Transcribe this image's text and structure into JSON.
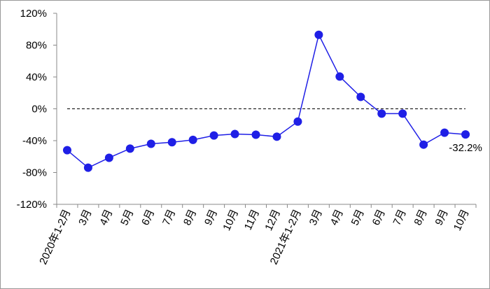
{
  "chart_data": {
    "type": "line",
    "categories": [
      "2020年1-2月",
      "3月",
      "4月",
      "5月",
      "6月",
      "7月",
      "8月",
      "9月",
      "10月",
      "11月",
      "12月",
      "2021年1-2月",
      "3月",
      "4月",
      "5月",
      "6月",
      "7月",
      "8月",
      "9月",
      "10月"
    ],
    "series": [
      {
        "name": null,
        "color": "#1f1fe6",
        "values": [
          -52,
          -74,
          -61.5,
          -50,
          -44,
          -42,
          -39,
          -33.5,
          -31.7,
          -32.5,
          -35,
          -16,
          93,
          40.5,
          15,
          -6,
          -6,
          -45,
          -30,
          -32.2
        ],
        "value_labels": [
          null,
          null,
          null,
          null,
          null,
          null,
          null,
          null,
          null,
          null,
          null,
          null,
          null,
          null,
          null,
          null,
          null,
          null,
          null,
          "-32.2%"
        ]
      }
    ],
    "ylim": [
      -120,
      120
    ],
    "yticks": [
      {
        "value": -120,
        "label": "-120%"
      },
      {
        "value": -80,
        "label": "-80%"
      },
      {
        "value": -40,
        "label": "-40%"
      },
      {
        "value": 0,
        "label": "0%"
      },
      {
        "value": 40,
        "label": "40%"
      },
      {
        "value": 80,
        "label": "80%"
      },
      {
        "value": 120,
        "label": "120%"
      }
    ],
    "zero_line": true
  }
}
